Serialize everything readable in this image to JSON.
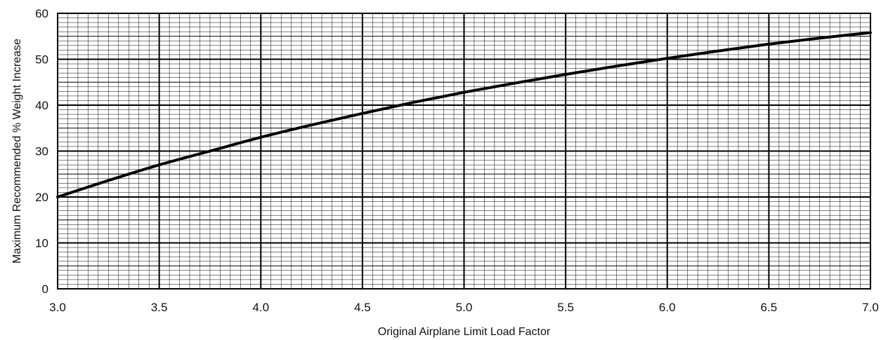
{
  "chart_data": {
    "type": "line",
    "title": "",
    "xlabel": "Original Airplane Limit Load Factor",
    "ylabel": "Maximum Recommended % Weight Increase",
    "xlim": [
      3.0,
      7.0
    ],
    "ylim": [
      0,
      60
    ],
    "x_ticks": [
      "3.0",
      "3.5",
      "4.0",
      "4.5",
      "5.0",
      "5.5",
      "6.0",
      "6.5",
      "7.0"
    ],
    "y_ticks": [
      "0",
      "10",
      "20",
      "30",
      "40",
      "50",
      "60"
    ],
    "grid": true,
    "minor_grid": true,
    "legend": "none",
    "colors": {
      "line": "#000000",
      "major_grid": "#000000",
      "minor_grid": "#000000"
    },
    "series": [
      {
        "x": [
          3.0,
          3.25,
          3.5,
          3.75,
          4.0,
          4.25,
          4.5,
          4.75,
          5.0,
          5.25,
          5.5,
          5.75,
          6.0,
          6.25,
          6.5,
          6.75,
          7.0
        ],
        "values": [
          20.0,
          23.6,
          27.0,
          30.0,
          33.0,
          35.7,
          38.2,
          40.6,
          42.8,
          44.8,
          46.7,
          48.5,
          50.2,
          51.8,
          53.3,
          54.6,
          55.8
        ]
      }
    ]
  }
}
